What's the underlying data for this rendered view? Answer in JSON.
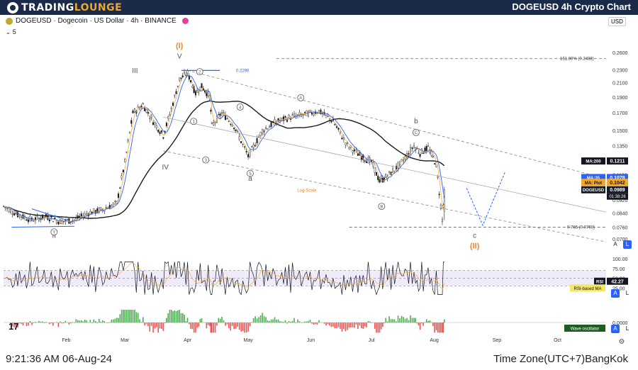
{
  "header": {
    "brand_prefix": "TRADING",
    "brand_suffix": "LOUNGE",
    "page_title": "DOGEUSD 4h Crypto Chart"
  },
  "footer": {
    "time": "9:21:36 AM 06-Aug-24",
    "timezone": "Time Zone(UTC+7)BangKok"
  },
  "legend": {
    "symbol_line": "DOGEUSD · Dogecoin · US Dollar · 4h · BINANCE",
    "indicator_count": "5",
    "currency": "USD"
  },
  "colors": {
    "header_bg": "#1b2a48",
    "brand_accent": "#f0a62a",
    "candle": "#131722",
    "ma200": "#1a1a1a",
    "ma35": "#2962ff",
    "ma_plot": "#f5a623",
    "wave_label_orange": "#e8862a",
    "wave_label_gray": "#555555",
    "rsi_band": "#7e57c2",
    "osc_up": "#4caf50",
    "osc_down": "#ef5350"
  },
  "chart_data": [
    {
      "type": "line",
      "subtype": "candlestick",
      "log_scale": true,
      "log_scale_label": "Log-Scale",
      "x_ticks": [
        "Feb",
        "Mar",
        "Apr",
        "May",
        "Jun",
        "Jul",
        "Aug",
        "Sep",
        "Oct"
      ],
      "y_ticks": [
        "0.2600",
        "0.2300",
        "0.2100",
        "0.1900",
        "0.1700",
        "0.1500",
        "0.1350",
        "0.1200",
        "0.1100",
        "0.0920",
        "0.0840",
        "0.0760",
        "0.0700"
      ],
      "ylim": [
        0.064,
        0.29
      ],
      "series": [
        {
          "name": "DOGEUSD",
          "points": [
            [
              "2024-01-01",
              0.088
            ],
            [
              "2024-01-08",
              0.083
            ],
            [
              "2024-01-15",
              0.08
            ],
            [
              "2024-01-22",
              0.082
            ],
            [
              "2024-01-29",
              0.079
            ],
            [
              "2024-02-05",
              0.08
            ],
            [
              "2024-02-12",
              0.084
            ],
            [
              "2024-02-19",
              0.086
            ],
            [
              "2024-02-26",
              0.09
            ],
            [
              "2024-03-01",
              0.12
            ],
            [
              "2024-03-05",
              0.17
            ],
            [
              "2024-03-10",
              0.18
            ],
            [
              "2024-03-15",
              0.16
            ],
            [
              "2024-03-20",
              0.145
            ],
            [
              "2024-03-24",
              0.175
            ],
            [
              "2024-03-28",
              0.215
            ],
            [
              "2024-04-01",
              0.225
            ],
            [
              "2024-04-05",
              0.195
            ],
            [
              "2024-04-08",
              0.205
            ],
            [
              "2024-04-12",
              0.19
            ],
            [
              "2024-04-13",
              0.155
            ],
            [
              "2024-04-18",
              0.17
            ],
            [
              "2024-04-24",
              0.155
            ],
            [
              "2024-05-01",
              0.125
            ],
            [
              "2024-05-08",
              0.15
            ],
            [
              "2024-05-15",
              0.16
            ],
            [
              "2024-05-22",
              0.165
            ],
            [
              "2024-05-29",
              0.168
            ],
            [
              "2024-06-05",
              0.172
            ],
            [
              "2024-06-12",
              0.16
            ],
            [
              "2024-06-19",
              0.135
            ],
            [
              "2024-06-26",
              0.125
            ],
            [
              "2024-07-01",
              0.12
            ],
            [
              "2024-07-05",
              0.105
            ],
            [
              "2024-07-08",
              0.108
            ],
            [
              "2024-07-15",
              0.118
            ],
            [
              "2024-07-22",
              0.135
            ],
            [
              "2024-07-25",
              0.128
            ],
            [
              "2024-07-29",
              0.133
            ],
            [
              "2024-08-02",
              0.118
            ],
            [
              "2024-08-05",
              0.08
            ],
            [
              "2024-08-06",
              0.0989
            ]
          ]
        },
        {
          "name": "MA:200",
          "last": 0.1211
        },
        {
          "name": "MA:35",
          "last": 0.1078
        },
        {
          "name": "MA: Plot",
          "last": 0.1042
        }
      ],
      "price_badges": [
        {
          "label": "MA:200",
          "value": "0.1211"
        },
        {
          "label": "MA:35",
          "value": "0.1078"
        },
        {
          "label": "MA: Plot",
          "value": "0.1042"
        },
        {
          "label": "DOGEUSD",
          "value": "0.0989",
          "countdown": "01:38:26"
        }
      ],
      "levels": [
        {
          "label": "0.2290",
          "value": 0.229
        },
        {
          "label": "161.80% (0.2488)",
          "value": 0.2488
        },
        {
          "label": "0.786 (0.0760)",
          "value": 0.076
        }
      ],
      "wave_labels": {
        "major": [
          "(I)",
          "(II)"
        ],
        "primary": [
          "I",
          "II",
          "III",
          "IV",
          "V"
        ],
        "minor_circled": [
          "1",
          "2",
          "3",
          "4",
          "5"
        ],
        "correction_circled": [
          "A",
          "B",
          "C"
        ],
        "abc": [
          "a",
          "b",
          "c"
        ],
        "y": "Y"
      }
    },
    {
      "type": "line",
      "name": "RSI",
      "y_ticks": [
        "100.00",
        "75.00",
        "50.00",
        "25.00"
      ],
      "ylim": [
        0,
        100
      ],
      "band": [
        30,
        70
      ],
      "badge": {
        "label": "RSI",
        "value": "42.27"
      },
      "ma_label": "RSI-based MA"
    },
    {
      "type": "bar",
      "name": "Wave oscillator",
      "y_ticks": [
        "0.0000"
      ],
      "badge": {
        "label": "Wave oscillator"
      }
    }
  ]
}
